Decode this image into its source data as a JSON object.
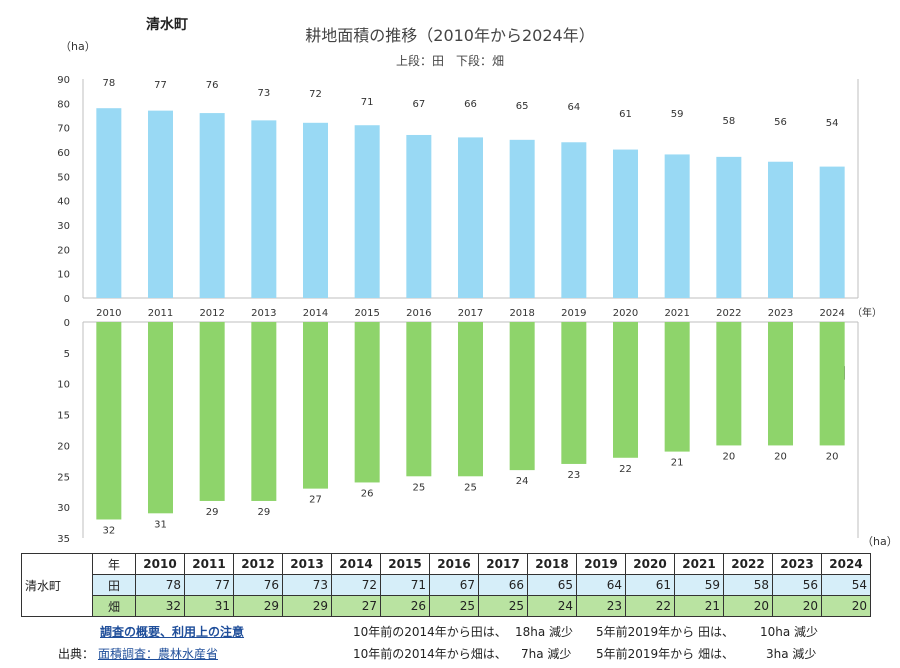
{
  "header": {
    "town": "清水町",
    "title": "耕地面積の推移（2010年から2024年）",
    "subtitle": "上段：田　下段：畑"
  },
  "colors": {
    "ta": "#99d9f4",
    "hata": "#8ed46b",
    "axis": "#bfbfbf"
  },
  "chart_data": [
    {
      "type": "bar",
      "categories": [
        "2010",
        "2011",
        "2012",
        "2013",
        "2014",
        "2015",
        "2016",
        "2017",
        "2018",
        "2019",
        "2020",
        "2021",
        "2022",
        "2023",
        "2024"
      ],
      "values": [
        78,
        77,
        76,
        73,
        72,
        71,
        67,
        66,
        65,
        64,
        61,
        59,
        58,
        56,
        54
      ],
      "label": "田",
      "ylabel": "（ha）",
      "xlabel": "（年）",
      "ylim": [
        0,
        90
      ],
      "yticks": [
        0,
        10,
        20,
        30,
        40,
        50,
        60,
        70,
        80,
        90
      ]
    },
    {
      "type": "bar",
      "categories": [
        "2010",
        "2011",
        "2012",
        "2013",
        "2014",
        "2015",
        "2016",
        "2017",
        "2018",
        "2019",
        "2020",
        "2021",
        "2022",
        "2023",
        "2024"
      ],
      "values": [
        32,
        31,
        29,
        29,
        27,
        26,
        25,
        25,
        24,
        23,
        22,
        21,
        20,
        20,
        20
      ],
      "label": "畑",
      "ylabel": "（ha）",
      "ylim": [
        0,
        35
      ],
      "yticks": [
        0,
        5,
        10,
        15,
        20,
        25,
        30,
        35
      ],
      "inverted": true
    }
  ],
  "table": {
    "town": "清水町",
    "year_header": "年",
    "years": [
      "2010",
      "2011",
      "2012",
      "2013",
      "2014",
      "2015",
      "2016",
      "2017",
      "2018",
      "2019",
      "2020",
      "2021",
      "2022",
      "2023",
      "2024"
    ],
    "rows": [
      {
        "label": "田",
        "values": [
          "78",
          "77",
          "76",
          "73",
          "72",
          "71",
          "67",
          "66",
          "65",
          "64",
          "61",
          "59",
          "58",
          "56",
          "54"
        ]
      },
      {
        "label": "畑",
        "values": [
          "32",
          "31",
          "29",
          "29",
          "27",
          "26",
          "25",
          "25",
          "24",
          "23",
          "22",
          "21",
          "20",
          "20",
          "20"
        ]
      }
    ]
  },
  "footer": {
    "survey_link": "調査の概要、利用上の注意",
    "source_label": "出典：",
    "source_link": "面積調査：農林水産省",
    "notes": [
      {
        "a": "10年前の2014年から田は、",
        "b": "18ha 減少",
        "c": "5年前2019年から 田は、",
        "d": "10ha 減少"
      },
      {
        "a": "10年前の2014年から畑は、",
        "b": "7ha 減少",
        "c": "5年前2019年から 畑は、",
        "d": "3ha 減少"
      }
    ]
  }
}
